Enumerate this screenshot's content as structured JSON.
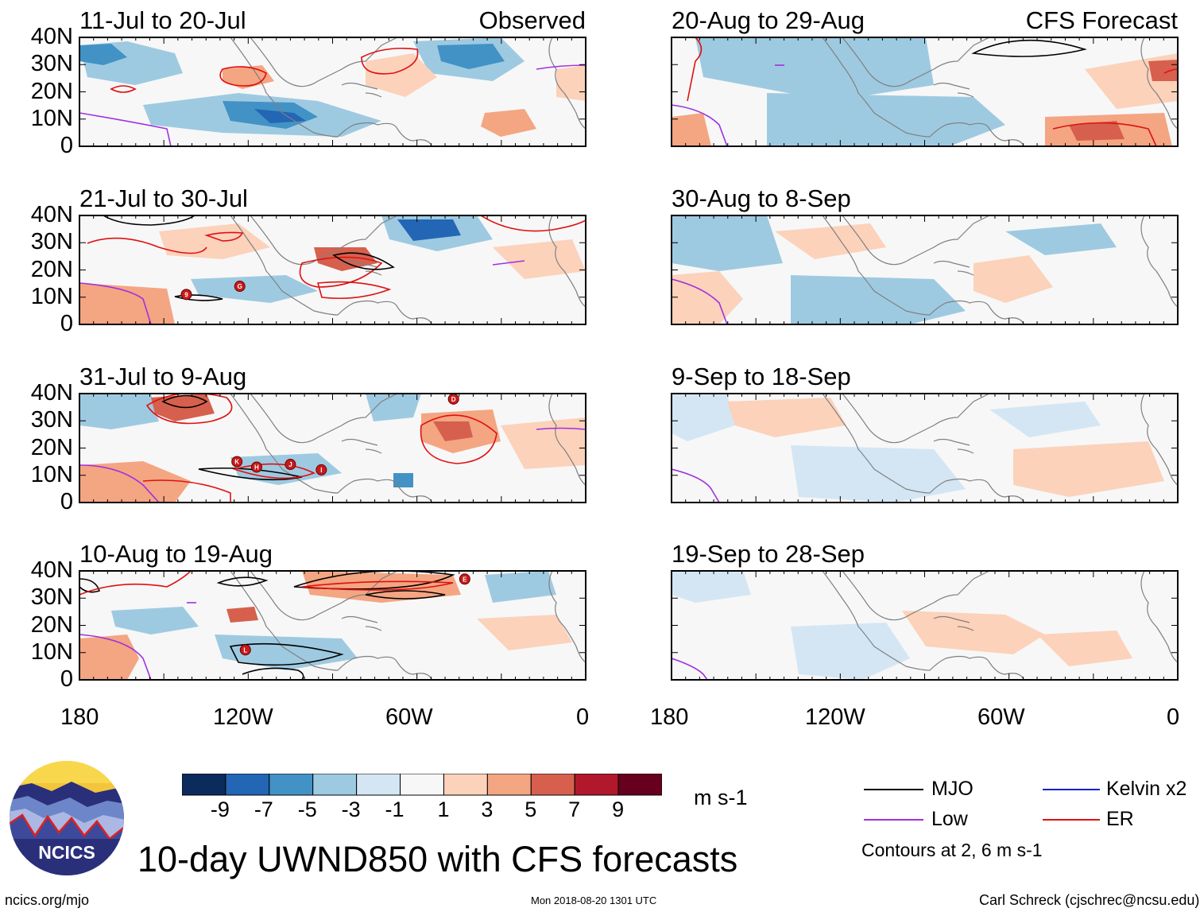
{
  "chart_data": {
    "type": "heatmap",
    "title": "10-day UWND850 with CFS forecasts",
    "variable": "850-hPa zonal wind anomaly",
    "units": "m s-1",
    "x_ticks": [
      "180",
      "120W",
      "60W",
      "0"
    ],
    "x_range_deg": [
      -180,
      0
    ],
    "y_ticks": [
      "40N",
      "30N",
      "20N",
      "10N",
      "0"
    ],
    "y_range_deg": [
      0,
      40
    ],
    "columns": [
      {
        "heading": "Observed",
        "kind": "observed"
      },
      {
        "heading": "CFS Forecast",
        "kind": "forecast"
      }
    ],
    "panels": [
      {
        "id": "obs1",
        "column": 0,
        "row": 0,
        "period": "11-Jul to 20-Jul",
        "heading": "Observed"
      },
      {
        "id": "obs2",
        "column": 0,
        "row": 1,
        "period": "21-Jul to 30-Jul",
        "storm_markers": [
          {
            "label": "9",
            "lon": -142,
            "lat": 11
          },
          {
            "label": "G",
            "lon": -123,
            "lat": 14
          }
        ]
      },
      {
        "id": "obs3",
        "column": 0,
        "row": 2,
        "period": "31-Jul to 9-Aug",
        "storm_markers": [
          {
            "label": "D",
            "lon": -47,
            "lat": 38
          },
          {
            "label": "K",
            "lon": -124,
            "lat": 15
          },
          {
            "label": "H",
            "lon": -117,
            "lat": 13
          },
          {
            "label": "J",
            "lon": -105,
            "lat": 14
          },
          {
            "label": "I",
            "lon": -94,
            "lat": 12
          }
        ]
      },
      {
        "id": "obs4",
        "column": 0,
        "row": 3,
        "period": "10-Aug to 19-Aug",
        "storm_markers": [
          {
            "label": "E",
            "lon": -43,
            "lat": 37
          },
          {
            "label": "L",
            "lon": -121,
            "lat": 11
          }
        ]
      },
      {
        "id": "fc1",
        "column": 1,
        "row": 0,
        "period": "20-Aug to 29-Aug",
        "heading": "CFS Forecast"
      },
      {
        "id": "fc2",
        "column": 1,
        "row": 1,
        "period": "30-Aug to 8-Sep"
      },
      {
        "id": "fc3",
        "column": 1,
        "row": 2,
        "period": "9-Sep to 18-Sep"
      },
      {
        "id": "fc4",
        "column": 1,
        "row": 3,
        "period": "19-Sep to 28-Sep"
      }
    ],
    "colorbar": {
      "ticks": [
        "-9",
        "-7",
        "-5",
        "-3",
        "-1",
        "1",
        "3",
        "5",
        "7",
        "9"
      ],
      "colors": [
        "#0b2b5c",
        "#2266b5",
        "#4292c6",
        "#9ecae1",
        "#d4e6f3",
        "#f7f7f7",
        "#fcd2bb",
        "#f4a582",
        "#d6604d",
        "#b2182b",
        "#67001f"
      ],
      "units": "m s-1"
    },
    "legend": {
      "items": [
        {
          "label": "MJO",
          "color": "#000000"
        },
        {
          "label": "Kelvin x2",
          "color": "#1020d0"
        },
        {
          "label": "Low",
          "color": "#a030e0"
        },
        {
          "label": "ER",
          "color": "#e01010"
        }
      ],
      "note": "Contours at 2, 6 m s-1"
    }
  },
  "branding": {
    "logo_text": "NCICS",
    "url": "ncics.org/mjo",
    "timestamp": "Mon 2018-08-20 1301 UTC",
    "credit": "Carl Schreck (cjschrec@ncsu.edu)"
  }
}
